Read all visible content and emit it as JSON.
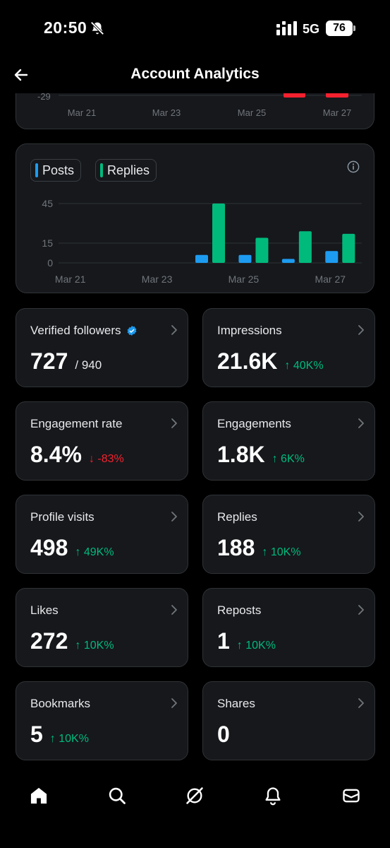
{
  "status_bar": {
    "time": "20:50",
    "network": "5G",
    "battery": "76"
  },
  "header": {
    "title": "Account Analytics"
  },
  "top_chart": {
    "y_tick": "-29",
    "x_labels": [
      "Mar 21",
      "Mar 23",
      "Mar 25",
      "Mar 27"
    ],
    "bar_color": "#f4212e"
  },
  "chart_data": {
    "type": "bar",
    "categories": [
      "Mar 21",
      "Mar 22",
      "Mar 23",
      "Mar 24",
      "Mar 25",
      "Mar 26",
      "Mar 27"
    ],
    "x_tick_labels": [
      "Mar 21",
      "Mar 23",
      "Mar 25",
      "Mar 27"
    ],
    "y_ticks": [
      "45",
      "15",
      "0"
    ],
    "ylim": [
      0,
      45
    ],
    "series": [
      {
        "name": "Posts",
        "color": "#1d9bf0",
        "values": [
          0,
          0,
          0,
          6,
          6,
          3,
          9
        ]
      },
      {
        "name": "Replies",
        "color": "#00ba7c",
        "values": [
          0,
          0,
          0,
          45,
          19,
          24,
          22
        ]
      }
    ],
    "grid": true,
    "legend": "top-left"
  },
  "metrics": [
    {
      "label": "Verified followers",
      "value": "727",
      "sub": "/ 940",
      "delta": "",
      "direction": "",
      "verified": true
    },
    {
      "label": "Impressions",
      "value": "21.6K",
      "sub": "",
      "delta": "40K%",
      "direction": "up"
    },
    {
      "label": "Engagement rate",
      "value": "8.4%",
      "sub": "",
      "delta": "-83%",
      "direction": "down"
    },
    {
      "label": "Engagements",
      "value": "1.8K",
      "sub": "",
      "delta": "6K%",
      "direction": "up"
    },
    {
      "label": "Profile visits",
      "value": "498",
      "sub": "",
      "delta": "49K%",
      "direction": "up"
    },
    {
      "label": "Replies",
      "value": "188",
      "sub": "",
      "delta": "10K%",
      "direction": "up"
    },
    {
      "label": "Likes",
      "value": "272",
      "sub": "",
      "delta": "10K%",
      "direction": "up"
    },
    {
      "label": "Reposts",
      "value": "1",
      "sub": "",
      "delta": "10K%",
      "direction": "up"
    },
    {
      "label": "Bookmarks",
      "value": "5",
      "sub": "",
      "delta": "10K%",
      "direction": "up"
    },
    {
      "label": "Shares",
      "value": "0",
      "sub": "",
      "delta": "",
      "direction": ""
    }
  ],
  "nav": [
    {
      "icon": "home-icon"
    },
    {
      "icon": "search-icon"
    },
    {
      "icon": "grok-icon"
    },
    {
      "icon": "notifications-icon"
    },
    {
      "icon": "messages-icon"
    }
  ]
}
